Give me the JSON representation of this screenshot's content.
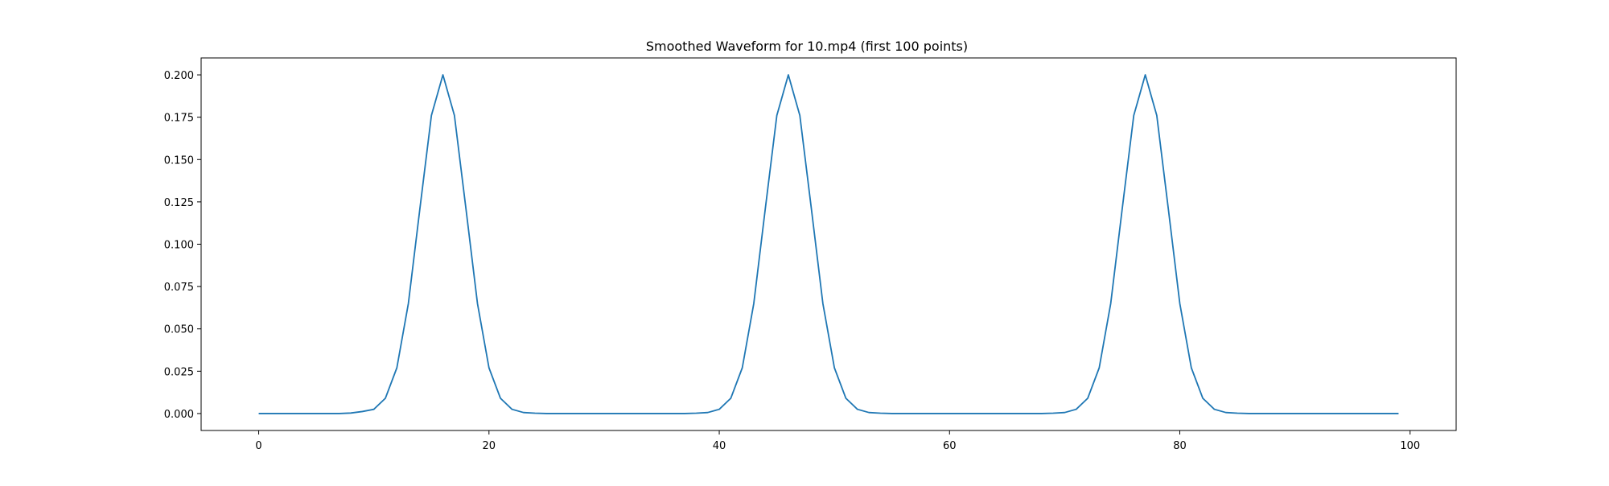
{
  "chart_data": {
    "type": "line",
    "title": "Smoothed Waveform for 10.mp4 (first 100 points)",
    "xlabel": "",
    "ylabel": "",
    "xlim": [
      -5,
      104
    ],
    "ylim": [
      -0.01,
      0.21
    ],
    "xticks": [
      0,
      20,
      40,
      60,
      80,
      100
    ],
    "xtick_labels": [
      "0",
      "20",
      "40",
      "60",
      "80",
      "100"
    ],
    "yticks": [
      0.0,
      0.025,
      0.05,
      0.075,
      0.1,
      0.125,
      0.15,
      0.175,
      0.2
    ],
    "ytick_labels": [
      "0.000",
      "0.025",
      "0.050",
      "0.075",
      "0.100",
      "0.125",
      "0.150",
      "0.175",
      "0.200"
    ],
    "grid": false,
    "legend": "none",
    "series": [
      {
        "color": "#1f77b4",
        "x": [
          0,
          1,
          2,
          3,
          4,
          5,
          6,
          7,
          8,
          9,
          10,
          11,
          12,
          13,
          14,
          15,
          16,
          17,
          18,
          19,
          20,
          21,
          22,
          23,
          24,
          25,
          26,
          27,
          28,
          29,
          30,
          31,
          32,
          33,
          34,
          35,
          36,
          37,
          38,
          39,
          40,
          41,
          42,
          43,
          44,
          45,
          46,
          47,
          48,
          49,
          50,
          51,
          52,
          53,
          54,
          55,
          56,
          57,
          58,
          59,
          60,
          61,
          62,
          63,
          64,
          65,
          66,
          67,
          68,
          69,
          70,
          71,
          72,
          73,
          74,
          75,
          76,
          77,
          78,
          79,
          80,
          81,
          82,
          83,
          84,
          85,
          86,
          87,
          88,
          89,
          90,
          91,
          92,
          93,
          94,
          95,
          96,
          97,
          98,
          99
        ],
        "y": [
          0,
          0,
          0,
          0,
          0,
          0,
          0,
          0,
          0.0003,
          0.0012,
          0.0025,
          0.009,
          0.027,
          0.065,
          0.121,
          0.176,
          0.2,
          0.176,
          0.121,
          0.065,
          0.027,
          0.009,
          0.0025,
          0.0006,
          0.0002,
          0,
          0,
          0,
          0,
          0,
          0,
          0,
          0,
          0,
          0,
          0,
          0,
          0,
          0.0002,
          0.0006,
          0.0025,
          0.009,
          0.027,
          0.065,
          0.121,
          0.176,
          0.2,
          0.176,
          0.121,
          0.065,
          0.027,
          0.009,
          0.0025,
          0.0006,
          0.0002,
          0,
          0,
          0,
          0,
          0,
          0,
          0,
          0,
          0,
          0,
          0,
          0,
          0,
          0,
          0.0002,
          0.0006,
          0.0025,
          0.009,
          0.027,
          0.065,
          0.121,
          0.176,
          0.2,
          0.176,
          0.121,
          0.065,
          0.027,
          0.009,
          0.0025,
          0.0006,
          0.0002,
          0,
          0,
          0,
          0,
          0,
          0,
          0,
          0,
          0,
          0,
          0,
          0,
          0,
          0
        ]
      }
    ]
  }
}
